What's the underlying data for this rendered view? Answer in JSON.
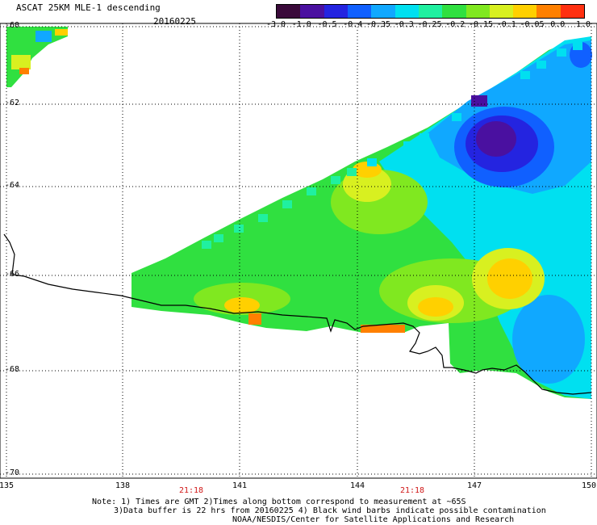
{
  "header": {
    "title": "ASCAT 25KM MLE-1 descending",
    "date": "20160225"
  },
  "colorbar": {
    "labels": [
      "-3.0",
      "-1.0",
      "-0.5",
      "-0.4",
      "-0.35",
      "-0.3",
      "-0.25",
      "-0.2",
      "-0.15",
      "-0.1",
      "-0.05",
      "0.0",
      "1.0"
    ],
    "colors": [
      "#3a0a3a",
      "#4a10a0",
      "#2424e0",
      "#1060ff",
      "#10a8ff",
      "#00e0f0",
      "#20f0a0",
      "#30e040",
      "#80e820",
      "#d8f020",
      "#ffd000",
      "#ff8000",
      "#ff3010"
    ]
  },
  "map": {
    "lat_labels": [
      "-60",
      "-62",
      "-64",
      "-66",
      "-68",
      "-70"
    ],
    "lon_labels": [
      "135",
      "138",
      "141",
      "144",
      "147",
      "150"
    ],
    "times": [
      "21:18",
      "21:18"
    ],
    "icons": [
      "coastline-line",
      "graticule-grid",
      "wind-field-shading"
    ]
  },
  "notes": {
    "line1": "Note: 1) Times are GMT 2)Times along bottom correspond to measurement at ~65S",
    "line2": "3)Data buffer is 22 hrs from 20160225 4) Black wind barbs indicate possible contamination",
    "line3": "NOAA/NESDIS/Center for Satellite Applications and Research"
  }
}
